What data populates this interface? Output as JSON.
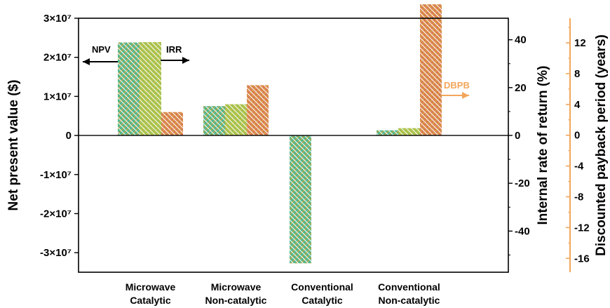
{
  "chart_data": {
    "type": "bar",
    "categories": [
      [
        "Microwave",
        "Catalytic"
      ],
      [
        "Microwave",
        "Non-catalytic"
      ],
      [
        "Conventional",
        "Catalytic"
      ],
      [
        "Conventional",
        "Non-catalytic"
      ]
    ],
    "series": [
      {
        "key": "npv",
        "axis": "left",
        "values": [
          23800000,
          7500000,
          -32700000,
          1300000
        ],
        "color_top": "#1cc3b5",
        "color_bottom": "#c9a23c"
      },
      {
        "key": "irr",
        "axis": "right1",
        "values": [
          39,
          13,
          null,
          3
        ],
        "color_top": "#8fc15d",
        "color_bottom": "#c9c23c"
      },
      {
        "key": "dbpb",
        "axis": "right2",
        "values": [
          3,
          6.5,
          null,
          17
        ],
        "color_top": "#d9a53c",
        "color_bottom": "#d96a5e"
      }
    ],
    "axes": {
      "left": {
        "label": "Net present value ($)",
        "min": -35000000,
        "max": 30000000,
        "ticks": [
          30000000,
          20000000,
          10000000,
          0,
          -10000000,
          -20000000,
          -30000000
        ],
        "tick_labels": [
          "3×10⁷",
          "2×10⁷",
          "1×10⁷",
          "0",
          "-1×10⁷",
          "-2×10⁷",
          "-3×10⁷"
        ]
      },
      "right1": {
        "label": "Internal rate of return (%)",
        "min": -57.2,
        "max": 49,
        "ticks": [
          40,
          20,
          0,
          -20,
          -40
        ],
        "tick_labels": [
          "40",
          "20",
          "0",
          "-20",
          "-40"
        ]
      },
      "right2": {
        "label": "Discounted payback period (years)",
        "min": -17.8,
        "max": 15.2,
        "ticks": [
          12,
          8,
          4,
          0,
          -4,
          -8,
          -12,
          -16
        ],
        "tick_labels": [
          "12",
          "8",
          "4",
          "0",
          "-4",
          "-8",
          "-12",
          "-16"
        ],
        "color": "#f2a65a"
      }
    },
    "annotations": [
      {
        "text": "NPV",
        "direction": "left",
        "color": "#000000"
      },
      {
        "text": "IRR",
        "direction": "right",
        "color": "#000000"
      },
      {
        "text": "DBPB",
        "direction": "right",
        "color": "#f2a65a"
      }
    ],
    "grid": false,
    "legend": "none"
  }
}
